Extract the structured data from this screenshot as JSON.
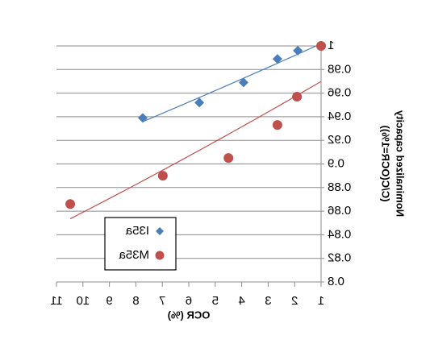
{
  "chart_data": {
    "type": "scatter",
    "x_label": "OCR (%)",
    "y_label": [
      "Nominalized capacity",
      "(C/C(OCR=1%))"
    ],
    "series": [
      {
        "name": "I35a",
        "color": "#4a7ebb",
        "marker": "diamond",
        "x": [
          1,
          1.88,
          2.65,
          3.93,
          5.6,
          7.74
        ],
        "values": [
          1,
          0.996,
          0.989,
          0.969,
          0.952,
          0.939
        ]
      },
      {
        "name": "M35a",
        "color": "#c0504d",
        "marker": "circle",
        "x": [
          1,
          1.91,
          2.65,
          4.5,
          6.98,
          10.48
        ],
        "values": [
          1,
          0.957,
          0.933,
          0.905,
          0.89,
          0.866
        ]
      }
    ],
    "xlim": [
      1,
      11
    ],
    "xticks": [
      1,
      2,
      3,
      4,
      5,
      6,
      7,
      8,
      9,
      10,
      11
    ],
    "ylim": [
      0.8,
      1
    ],
    "yticks": [
      0.8,
      0.82,
      0.84,
      0.86,
      0.88,
      0.9,
      0.92,
      0.94,
      0.96,
      0.98,
      1
    ],
    "grid": true,
    "trendline": true
  }
}
